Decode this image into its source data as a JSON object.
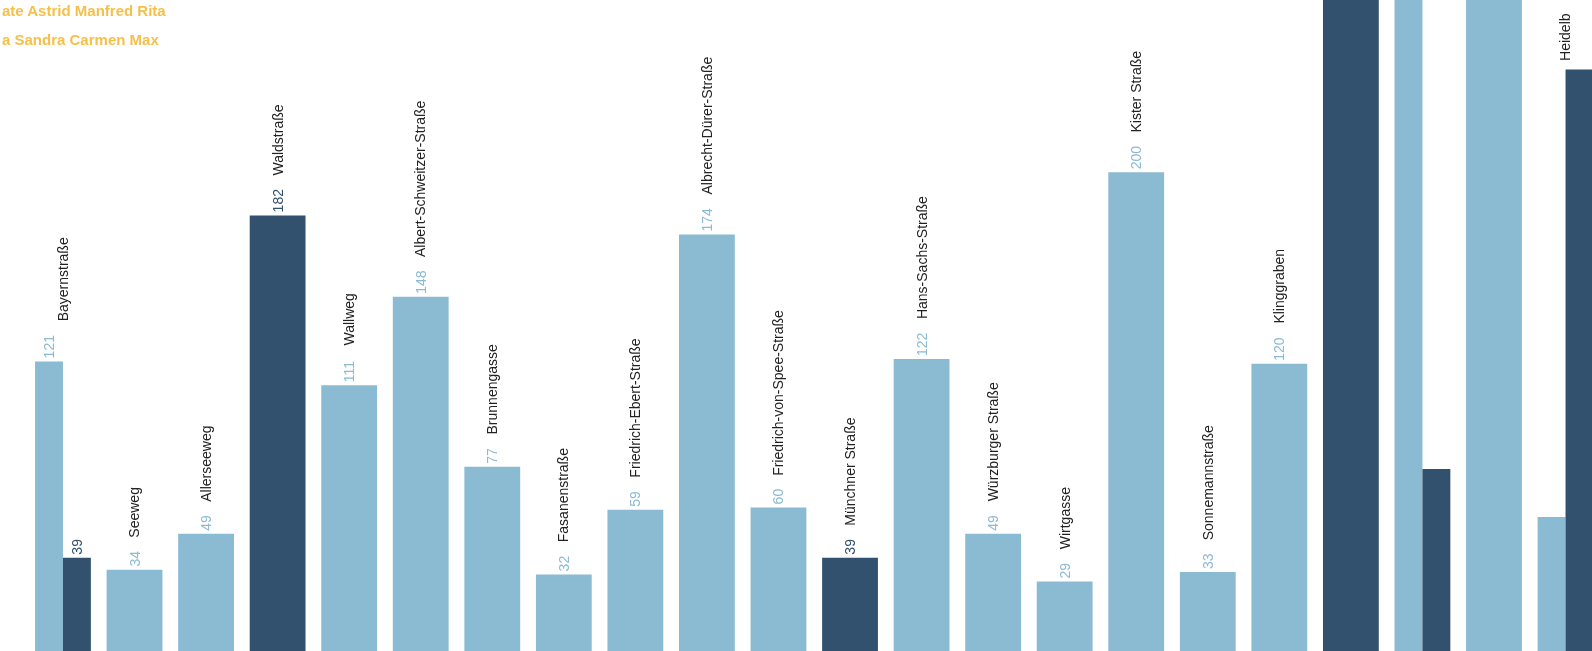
{
  "chart_data": {
    "type": "bar",
    "categories": [
      "Bayernstraße",
      "Seeweg",
      "Allerseeweg",
      "Waldstraße",
      "Wallweg",
      "Albert-Schweitzer-Straße",
      "Brunnengasse",
      "Fasanenstraße",
      "Friedrich-Ebert-Straße",
      "Albrecht-Dürer-Straße",
      "Friedrich-von-Spee-Straße",
      "Münchner Straße",
      "Hans-Sachs-Straße",
      "Würzburger Straße",
      "Wirtgasse",
      "Kister Straße",
      "Sonnemannstraße",
      "Klinggraben",
      null,
      null,
      null,
      "Heidelb"
    ],
    "series": [
      {
        "color": "#8bbad3",
        "values": [
          121,
          34,
          49,
          null,
          111,
          148,
          77,
          32,
          59,
          174,
          60,
          null,
          122,
          49,
          29,
          200,
          33,
          120,
          null,
          272,
          272,
          56
        ],
        "value_labels": [
          "121",
          "34",
          "49",
          null,
          "111",
          "148",
          "77",
          "32",
          "59",
          "174",
          "60",
          null,
          "122",
          "49",
          "29",
          "200",
          "33",
          "120",
          null,
          null,
          null,
          null
        ]
      },
      {
        "color": "#32516e",
        "values": [
          39,
          null,
          null,
          182,
          null,
          null,
          null,
          null,
          null,
          null,
          null,
          39,
          null,
          null,
          null,
          null,
          null,
          null,
          272,
          76,
          null,
          243
        ],
        "value_labels": [
          "39",
          null,
          null,
          "182",
          null,
          null,
          null,
          null,
          null,
          null,
          null,
          "39",
          null,
          null,
          null,
          null,
          null,
          null,
          null,
          null,
          null,
          null
        ]
      }
    ],
    "ylim": [
      0,
      272
    ],
    "tick_labels": false,
    "annotations": [
      "ate Astrid Manfred Rita",
      "a Sandra Carmen Max"
    ]
  }
}
